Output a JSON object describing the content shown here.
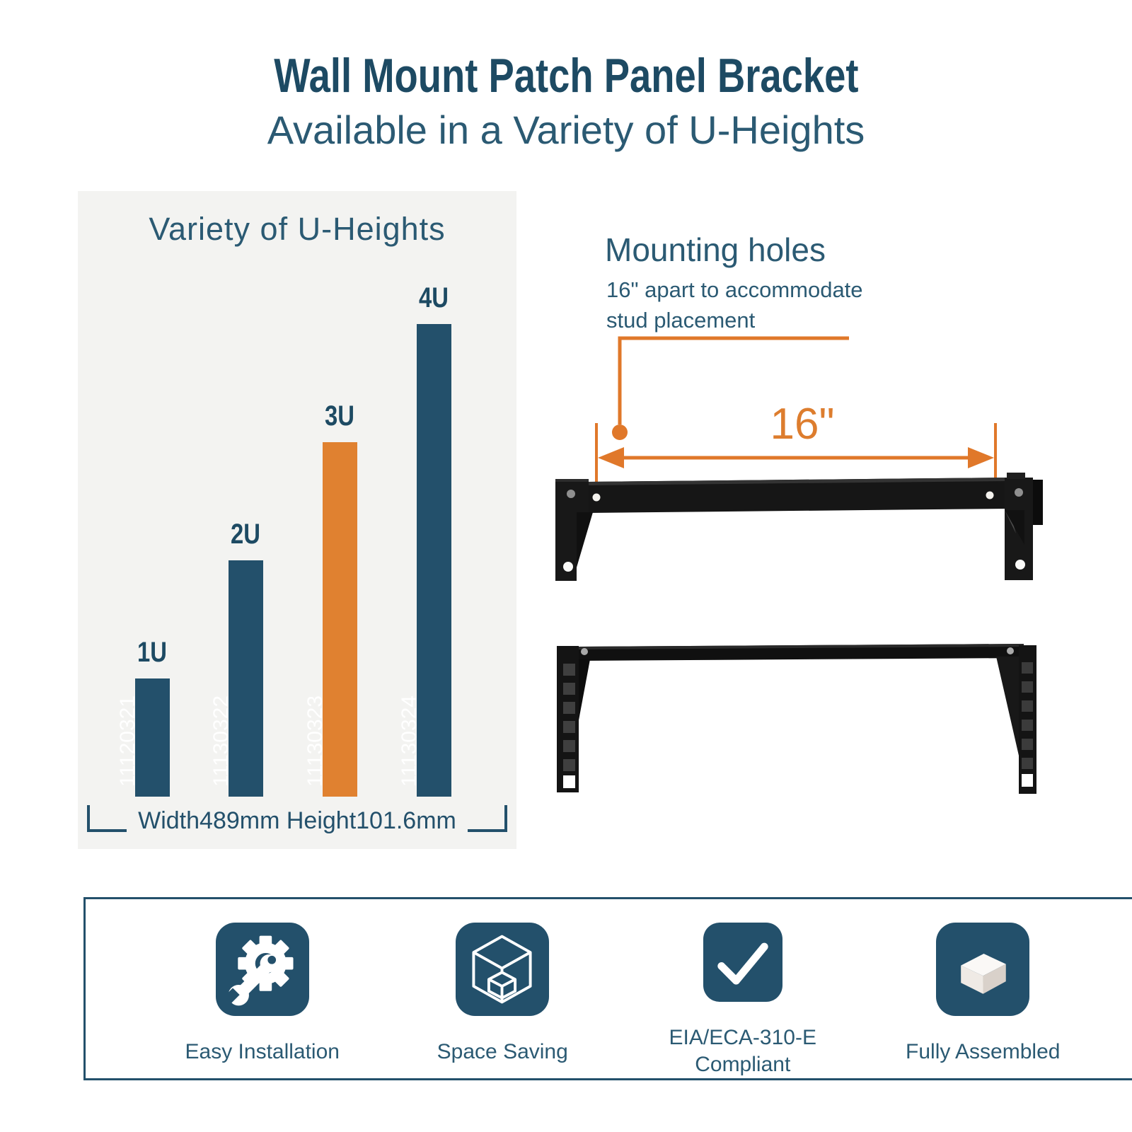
{
  "header": {
    "title": "Wall Mount Patch Panel Bracket",
    "subtitle": "Available in a Variety of U-Heights"
  },
  "chart_data": {
    "type": "bar",
    "title": "Variety of U-Heights",
    "categories": [
      "1U",
      "2U",
      "3U",
      "4U"
    ],
    "values": [
      1,
      2,
      3,
      4
    ],
    "bar_labels": [
      "11120321",
      "11130322",
      "11130323",
      "11130324"
    ],
    "highlight_index": 2,
    "bar_color": "#23506b",
    "highlight_color": "#e08130",
    "category_label_color": "#1d4a63",
    "xlabel": "",
    "ylabel": "",
    "ylim": [
      0,
      4
    ],
    "grid": false,
    "legend": false,
    "note": "Width489mm Height101.6mm"
  },
  "mounting": {
    "heading": "Mounting holes",
    "desc_line1": "16\" apart to accommodate",
    "desc_line2": "stud placement",
    "dimension_label": "16\""
  },
  "features": {
    "items": [
      {
        "icon": "wrench-gear-icon",
        "label": "Easy Installation"
      },
      {
        "icon": "cube-outline-icon",
        "label": "Space Saving"
      },
      {
        "icon": "checkmark-icon",
        "label": "EIA/ECA-310-E Compliant"
      },
      {
        "icon": "box-3d-icon",
        "label": "Fully Assembled"
      }
    ]
  },
  "colors": {
    "navy": "#23506b",
    "navy_dark": "#1d4a63",
    "navy_text": "#2b5a73",
    "orange": "#e08130",
    "panel_bg": "#f3f3f1",
    "photo_black": "#161616"
  }
}
